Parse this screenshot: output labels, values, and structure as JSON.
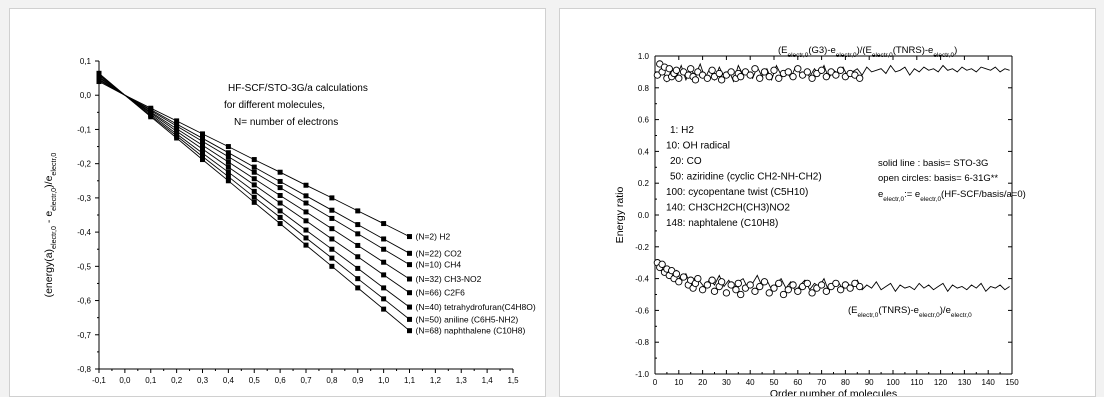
{
  "chart_data": [
    {
      "type": "line",
      "title": "",
      "annotation": [
        "HF-SCF/STO-3G/a calculations",
        "for different molecules,",
        "N= number of electrons"
      ],
      "xlabel": "",
      "ylabel": "(energy(a)electr,0 - eelectr,0)/eelectr,0",
      "xlim": [
        -0.1,
        1.5
      ],
      "ylim": [
        -0.8,
        0.1
      ],
      "xticks": [
        "-0,1",
        "0,0",
        "0,1",
        "0,2",
        "0,3",
        "0,4",
        "0,5",
        "0,6",
        "0,7",
        "0,8",
        "0,9",
        "1,0",
        "1,1",
        "1,2",
        "1,3",
        "1,4",
        "1,5"
      ],
      "yticks": [
        "0,1",
        "0,0",
        "-0,1",
        "-0,2",
        "-0,3",
        "-0,4",
        "-0,5",
        "-0,6",
        "-0,7",
        "-0,8"
      ],
      "x": [
        -0.1,
        0.0,
        0.1,
        0.2,
        0.3,
        0.4,
        0.5,
        0.6,
        0.7,
        0.8,
        0.9,
        1.0,
        1.1
      ],
      "series": [
        {
          "name": "(N=2) H2",
          "values": [
            0.04,
            0.0,
            -0.038,
            -0.075,
            -0.113,
            -0.15,
            -0.188,
            -0.225,
            -0.263,
            -0.3,
            -0.338,
            -0.375,
            -0.413
          ]
        },
        {
          "name": "(N=22) CO2",
          "values": [
            0.044,
            0.0,
            -0.042,
            -0.084,
            -0.126,
            -0.168,
            -0.21,
            -0.252,
            -0.294,
            -0.336,
            -0.378,
            -0.42,
            -0.462
          ]
        },
        {
          "name": "(N=10) CH4",
          "values": [
            0.047,
            0.0,
            -0.045,
            -0.09,
            -0.135,
            -0.18,
            -0.225,
            -0.27,
            -0.315,
            -0.36,
            -0.405,
            -0.45,
            -0.495
          ]
        },
        {
          "name": "(N=32) CH3-NO2",
          "values": [
            0.051,
            0.0,
            -0.049,
            -0.098,
            -0.146,
            -0.195,
            -0.244,
            -0.293,
            -0.341,
            -0.39,
            -0.439,
            -0.488,
            -0.537
          ]
        },
        {
          "name": "(N=66) C2F6",
          "values": [
            0.054,
            0.0,
            -0.052,
            -0.105,
            -0.157,
            -0.21,
            -0.262,
            -0.315,
            -0.367,
            -0.42,
            -0.472,
            -0.525,
            -0.577
          ]
        },
        {
          "name": "(N=40) tetrahydrofuran(C4H8O)",
          "values": [
            0.058,
            0.0,
            -0.056,
            -0.113,
            -0.169,
            -0.225,
            -0.281,
            -0.338,
            -0.394,
            -0.45,
            -0.506,
            -0.563,
            -0.619
          ]
        },
        {
          "name": "(N=50) aniline (C6H5-NH2)",
          "values": [
            0.061,
            0.0,
            -0.06,
            -0.119,
            -0.179,
            -0.238,
            -0.298,
            -0.357,
            -0.417,
            -0.476,
            -0.536,
            -0.595,
            -0.655
          ]
        },
        {
          "name": "(N=68) naphthalene (C10H8)",
          "values": [
            0.064,
            0.0,
            -0.063,
            -0.125,
            -0.188,
            -0.25,
            -0.313,
            -0.375,
            -0.438,
            -0.5,
            -0.563,
            -0.625,
            -0.688
          ]
        }
      ]
    },
    {
      "type": "line",
      "title": "",
      "xlabel": "Order number of molecules",
      "ylabel": "Energy ratio",
      "xlim": [
        0,
        150
      ],
      "ylim": [
        -1.0,
        1.0
      ],
      "xticks": [
        "0",
        "10",
        "20",
        "30",
        "40",
        "50",
        "60",
        "70",
        "80",
        "90",
        "100",
        "110",
        "120",
        "130",
        "140",
        "150"
      ],
      "yticks": [
        "1.0",
        "0.8",
        "0.6",
        "0.4",
        "0.2",
        "0.0",
        "-0.2",
        "-0.4",
        "-0.6",
        "-0.8",
        "-1.0"
      ],
      "upper_label": "(Eelectr,0(G3)-eelectr,0)/(Eelectr,0(TNRS)-eelectr,0)",
      "lower_label": "(Eelectr,0(TNRS)-eelectr,0)/eelectr,0",
      "molecule_list": [
        "1: H2",
        "10: OH radical",
        "20: CO",
        "50: aziridine (cyclic CH2-NH-CH2)",
        "100: cycopentane twist (C5H10)",
        "140: CH3CH2CH(CH3)NO2",
        "148: naphtalene (C10H8)"
      ],
      "legend_notes": [
        "solid line    : basis= STO-3G",
        "open circles: basis= 6-31G**",
        "eelectr,0:= eelectr,0(HF-SCF/basis/a=0)"
      ],
      "series": [
        {
          "name": "solid line",
          "x": [
            1,
            3,
            5,
            7,
            9,
            11,
            13,
            15,
            17,
            19,
            21,
            23,
            25,
            27,
            29,
            31,
            33,
            35,
            37,
            39,
            41,
            43,
            45,
            47,
            49,
            51,
            53,
            55,
            57,
            59,
            61,
            63,
            65,
            67,
            69,
            71,
            73,
            75,
            77,
            79,
            81,
            83,
            85,
            87,
            89,
            91,
            93,
            95,
            97,
            99,
            101,
            103,
            105,
            107,
            109,
            111,
            113,
            115,
            117,
            119,
            121,
            123,
            125,
            127,
            129,
            131,
            133,
            135,
            137,
            139,
            141,
            143,
            145,
            147,
            149
          ],
          "values": [
            0.88,
            0.93,
            0.84,
            0.92,
            0.86,
            0.94,
            0.85,
            0.91,
            0.88,
            0.95,
            0.86,
            0.92,
            0.85,
            0.93,
            0.87,
            0.91,
            0.84,
            0.94,
            0.88,
            0.9,
            0.86,
            0.93,
            0.87,
            0.92,
            0.85,
            0.94,
            0.88,
            0.91,
            0.86,
            0.93,
            0.89,
            0.9,
            0.87,
            0.92,
            0.88,
            0.94,
            0.86,
            0.91,
            0.89,
            0.93,
            0.87,
            0.9,
            0.92,
            0.88,
            0.93,
            0.9,
            0.91,
            0.92,
            0.89,
            0.94,
            0.9,
            0.91,
            0.93,
            0.88,
            0.92,
            0.9,
            0.93,
            0.91,
            0.92,
            0.9,
            0.94,
            0.91,
            0.92,
            0.9,
            0.93,
            0.91,
            0.92,
            0.9,
            0.93,
            0.92,
            0.91,
            0.93,
            0.9,
            0.92,
            0.91
          ]
        },
        {
          "name": "open circles",
          "x": [
            1,
            2,
            3,
            4,
            5,
            6,
            7,
            8,
            9,
            10,
            12,
            14,
            15,
            16,
            17,
            18,
            20,
            22,
            24,
            25,
            27,
            28,
            30,
            32,
            34,
            35,
            36,
            38,
            40,
            42,
            44,
            46,
            48,
            50,
            52,
            54,
            56,
            58,
            60,
            62,
            64,
            66,
            68,
            70,
            72,
            74,
            76,
            78,
            80,
            82,
            84,
            86
          ],
          "values": [
            0.88,
            0.95,
            0.9,
            0.93,
            0.86,
            0.92,
            0.87,
            0.89,
            0.91,
            0.86,
            0.9,
            0.88,
            0.92,
            0.87,
            0.85,
            0.9,
            0.88,
            0.86,
            0.91,
            0.87,
            0.89,
            0.85,
            0.88,
            0.9,
            0.86,
            0.89,
            0.87,
            0.9,
            0.88,
            0.92,
            0.86,
            0.9,
            0.87,
            0.91,
            0.86,
            0.89,
            0.9,
            0.87,
            0.92,
            0.88,
            0.9,
            0.86,
            0.89,
            0.91,
            0.87,
            0.9,
            0.88,
            0.91,
            0.87,
            0.89,
            0.88,
            0.86
          ]
        },
        {
          "name": "solid line",
          "x": [
            1,
            3,
            5,
            7,
            9,
            11,
            13,
            15,
            17,
            19,
            21,
            23,
            25,
            27,
            29,
            31,
            33,
            35,
            37,
            39,
            41,
            43,
            45,
            47,
            49,
            51,
            53,
            55,
            57,
            59,
            61,
            63,
            65,
            67,
            69,
            71,
            73,
            75,
            77,
            79,
            81,
            83,
            85,
            87,
            89,
            91,
            93,
            95,
            97,
            99,
            101,
            103,
            105,
            107,
            109,
            111,
            113,
            115,
            117,
            119,
            121,
            123,
            125,
            127,
            129,
            131,
            133,
            135,
            137,
            139,
            141,
            143,
            145,
            147,
            149
          ],
          "values": [
            -0.31,
            -0.36,
            -0.33,
            -0.4,
            -0.35,
            -0.42,
            -0.37,
            -0.44,
            -0.39,
            -0.42,
            -0.46,
            -0.4,
            -0.44,
            -0.38,
            -0.45,
            -0.41,
            -0.47,
            -0.42,
            -0.4,
            -0.46,
            -0.43,
            -0.38,
            -0.45,
            -0.41,
            -0.47,
            -0.43,
            -0.4,
            -0.46,
            -0.42,
            -0.48,
            -0.44,
            -0.41,
            -0.47,
            -0.43,
            -0.45,
            -0.4,
            -0.48,
            -0.44,
            -0.42,
            -0.47,
            -0.43,
            -0.46,
            -0.41,
            -0.47,
            -0.44,
            -0.46,
            -0.42,
            -0.47,
            -0.45,
            -0.43,
            -0.48,
            -0.44,
            -0.46,
            -0.45,
            -0.47,
            -0.43,
            -0.46,
            -0.44,
            -0.47,
            -0.45,
            -0.43,
            -0.48,
            -0.44,
            -0.46,
            -0.45,
            -0.47,
            -0.44,
            -0.46,
            -0.43,
            -0.48,
            -0.45,
            -0.46,
            -0.44,
            -0.47,
            -0.45
          ]
        },
        {
          "name": "open circles",
          "x": [
            1,
            2,
            3,
            4,
            5,
            6,
            7,
            8,
            9,
            10,
            12,
            14,
            15,
            16,
            17,
            18,
            20,
            22,
            24,
            25,
            27,
            28,
            30,
            32,
            34,
            35,
            36,
            38,
            40,
            42,
            44,
            46,
            48,
            50,
            52,
            54,
            56,
            58,
            60,
            62,
            64,
            66,
            68,
            70,
            72,
            74,
            76,
            78,
            80,
            82,
            84,
            86
          ],
          "values": [
            -0.3,
            -0.33,
            -0.31,
            -0.36,
            -0.34,
            -0.38,
            -0.35,
            -0.4,
            -0.37,
            -0.42,
            -0.39,
            -0.44,
            -0.41,
            -0.46,
            -0.43,
            -0.4,
            -0.47,
            -0.44,
            -0.41,
            -0.48,
            -0.45,
            -0.42,
            -0.49,
            -0.44,
            -0.47,
            -0.43,
            -0.5,
            -0.46,
            -0.44,
            -0.48,
            -0.45,
            -0.42,
            -0.49,
            -0.46,
            -0.43,
            -0.5,
            -0.47,
            -0.44,
            -0.48,
            -0.45,
            -0.43,
            -0.49,
            -0.46,
            -0.44,
            -0.48,
            -0.45,
            -0.43,
            -0.47,
            -0.44,
            -0.46,
            -0.43,
            -0.45
          ]
        }
      ]
    }
  ]
}
